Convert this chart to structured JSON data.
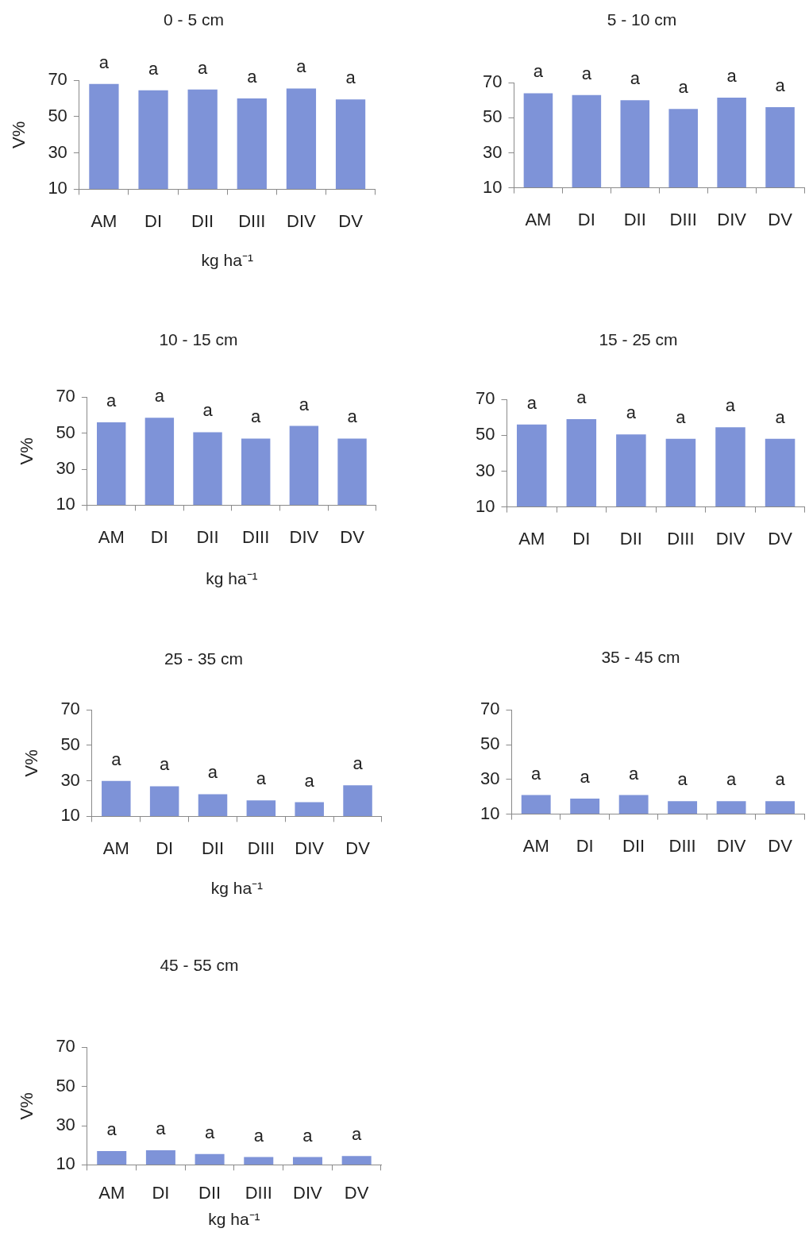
{
  "chart_data": [
    {
      "type": "bar",
      "title": "0 - 5 cm",
      "ylabel": "V%",
      "xlabel": "kg ha⁻¹",
      "categories": [
        "AM",
        "DI",
        "DII",
        "DIII",
        "DIV",
        "DV"
      ],
      "values": [
        68,
        64.5,
        65,
        60,
        65.5,
        59.5
      ],
      "color": "#7e93d8",
      "ylim": [
        10,
        70
      ],
      "yticks": [
        10,
        30,
        50,
        70
      ],
      "value_labels": [
        "a",
        "a",
        "a",
        "a",
        "a",
        "a"
      ]
    },
    {
      "type": "bar",
      "title": "5 - 10 cm",
      "categories": [
        "AM",
        "DI",
        "DII",
        "DIII",
        "DIV",
        "DV"
      ],
      "values": [
        64,
        63,
        60,
        55,
        61.5,
        56
      ],
      "color": "#7e93d8",
      "ylim": [
        10,
        70
      ],
      "yticks": [
        10,
        30,
        50,
        70
      ],
      "value_labels": [
        "a",
        "a",
        "a",
        "a",
        "a",
        "a"
      ]
    },
    {
      "type": "bar",
      "title": "10 - 15 cm",
      "ylabel": "V%",
      "xlabel": "kg ha⁻¹",
      "categories": [
        "AM",
        "DI",
        "DII",
        "DIII",
        "DIV",
        "DV"
      ],
      "values": [
        56,
        58.5,
        50.5,
        47,
        54,
        47
      ],
      "color": "#7e93d8",
      "ylim": [
        10,
        70
      ],
      "yticks": [
        10,
        30,
        50,
        70
      ],
      "value_labels": [
        "a",
        "a",
        "a",
        "a",
        "a",
        "a"
      ]
    },
    {
      "type": "bar",
      "title": "15 - 25 cm",
      "categories": [
        "AM",
        "DI",
        "DII",
        "DIII",
        "DIV",
        "DV"
      ],
      "values": [
        56,
        59,
        50.5,
        48,
        54.5,
        48
      ],
      "color": "#7e93d8",
      "ylim": [
        10,
        70
      ],
      "yticks": [
        10,
        30,
        50,
        70
      ],
      "value_labels": [
        "a",
        "a",
        "a",
        "a",
        "a",
        "a"
      ]
    },
    {
      "type": "bar",
      "title": "25 - 35 cm",
      "ylabel": "V%",
      "xlabel": "kg ha⁻¹",
      "categories": [
        "AM",
        "DI",
        "DII",
        "DIII",
        "DIV",
        "DV"
      ],
      "values": [
        30,
        27,
        22.5,
        19,
        18,
        27.5
      ],
      "color": "#7e93d8",
      "ylim": [
        10,
        70
      ],
      "yticks": [
        10,
        30,
        50,
        70
      ],
      "value_labels": [
        "a",
        "a",
        "a",
        "a",
        "a",
        "a"
      ]
    },
    {
      "type": "bar",
      "title": "35 - 45 cm",
      "categories": [
        "AM",
        "DI",
        "DII",
        "DIII",
        "DIV",
        "DV"
      ],
      "values": [
        21,
        19,
        21,
        17.5,
        17.5,
        17.5
      ],
      "color": "#7e93d8",
      "ylim": [
        10,
        70
      ],
      "yticks": [
        10,
        30,
        50,
        70
      ],
      "value_labels": [
        "a",
        "a",
        "a",
        "a",
        "a",
        "a"
      ]
    },
    {
      "type": "bar",
      "title": "45 - 55 cm",
      "ylabel": "V%",
      "xlabel": "kg ha⁻¹",
      "categories": [
        "AM",
        "DI",
        "DII",
        "DIII",
        "DIV",
        "DV"
      ],
      "values": [
        17,
        17.5,
        15.5,
        14,
        14,
        14.5
      ],
      "color": "#7e93d8",
      "ylim": [
        10,
        70
      ],
      "yticks": [
        10,
        30,
        50,
        70
      ],
      "value_labels": [
        "a",
        "a",
        "a",
        "a",
        "a",
        "a"
      ]
    }
  ]
}
